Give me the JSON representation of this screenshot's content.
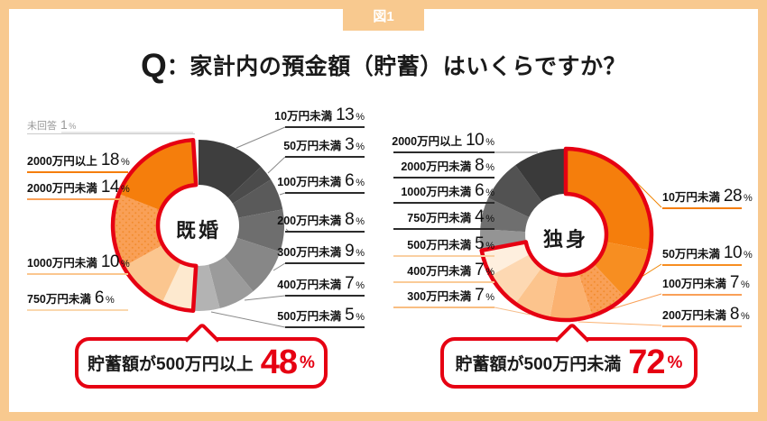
{
  "frame": {
    "tag": "図1"
  },
  "title": {
    "prefix": "Q",
    "text": "：家計内の預金額（貯蓄）はいくらですか？"
  },
  "percent_sign": "%",
  "colors": {
    "frame": "#F8C98F",
    "accent_red": "#E60012",
    "text": "#1A1A1A",
    "note_gray": "#999999"
  },
  "chart_data": [
    {
      "type": "pie",
      "subtype": "donut",
      "center_label": "既婚",
      "unit": "%",
      "segments": [
        {
          "label": "10万円未満",
          "value": 13,
          "color": "#3E3E3E"
        },
        {
          "label": "50万円未満",
          "value": 3,
          "color": "#4B4B4B"
        },
        {
          "label": "100万円未満",
          "value": 6,
          "color": "#5A5A5A"
        },
        {
          "label": "200万円未満",
          "value": 8,
          "color": "#6E6E6E"
        },
        {
          "label": "300万円未満",
          "value": 9,
          "color": "#878787"
        },
        {
          "label": "400万円未満",
          "value": 7,
          "color": "#9B9B9B"
        },
        {
          "label": "500万円未満",
          "value": 5,
          "color": "#B3B3B3"
        },
        {
          "label": "750万円未満",
          "value": 6,
          "color": "#FDE9CF",
          "line_color": "#FAD8AE"
        },
        {
          "label": "1000万円未満",
          "value": 10,
          "color": "#FBC68F"
        },
        {
          "label": "2000万円未満",
          "value": 14,
          "color": "#F9A057",
          "dots": true,
          "dot_color": "#F28C2E"
        },
        {
          "label": "2000万円以上",
          "value": 18,
          "color": "#F57E0C"
        },
        {
          "label": "未回答",
          "value": 1,
          "color": "#EFEFEF"
        }
      ],
      "highlight_outline": {
        "from_pct": 51,
        "to_pct": 99
      },
      "callout": {
        "label": "貯蓄額が500万円以上",
        "value": "48"
      }
    },
    {
      "type": "pie",
      "subtype": "donut",
      "center_label": "独身",
      "unit": "%",
      "segments": [
        {
          "label": "10万円未満",
          "value": 28,
          "color": "#F57E0C"
        },
        {
          "label": "50万円未満",
          "value": 10,
          "color": "#F78E21"
        },
        {
          "label": "100万円未満",
          "value": 7,
          "color": "#F9A057",
          "dots": true,
          "dot_color": "#F28C2E"
        },
        {
          "label": "200万円未満",
          "value": 8,
          "color": "#FBB271"
        },
        {
          "label": "300万円未満",
          "value": 7,
          "color": "#FCC48D",
          "line_color": "#F9BE83"
        },
        {
          "label": "400万円未満",
          "value": 7,
          "color": "#FDD8B2",
          "line_color": "#FACB97"
        },
        {
          "label": "500万円未満",
          "value": 5,
          "color": "#FEEFDE",
          "line_color": "#FAD0A2"
        },
        {
          "label": "750万円未満",
          "value": 4,
          "color": "#949494"
        },
        {
          "label": "1000万円未満",
          "value": 6,
          "color": "#6F6F6F"
        },
        {
          "label": "2000万円未満",
          "value": 8,
          "color": "#525252"
        },
        {
          "label": "2000万円以上",
          "value": 10,
          "color": "#3A3A3A"
        }
      ],
      "highlight_outline": {
        "from_pct": 0,
        "to_pct": 72
      },
      "callout": {
        "label": "貯蓄額が500万円未満",
        "value": "72"
      }
    }
  ]
}
